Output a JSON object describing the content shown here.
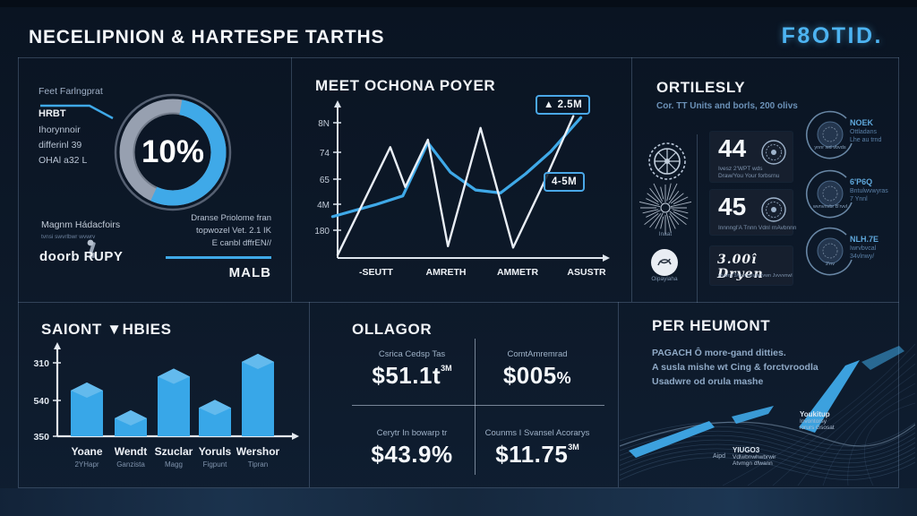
{
  "header": {
    "title": "NECELIPNION & HARTESPE TARTHS",
    "logo": "F8OTID."
  },
  "panel_engagement": {
    "top_label": "Feet Farlngprat",
    "heading": "HRBT",
    "lines": [
      "Ihorynnoir",
      "differinl 39",
      "OHAl a32 L"
    ],
    "center_value": "10%",
    "footer_title": "Magnm Hádacfoirs",
    "footer_sub": "tvnsi swvrlbwr wvwrv",
    "footer_brand": "doorb RUPY",
    "note_lines": [
      "Dranse Priolome fran",
      "topwozel Vet. 2.1 IK",
      "E canbl dffrEN//"
    ],
    "note_brand": "MALB"
  },
  "panel_line": {
    "title": "MEET OCHONA POYER",
    "badge_top": "▲ 2.5M",
    "badge_mid": "4-5M"
  },
  "panel_ortilesly": {
    "title": "ORTILESLY",
    "subtitle": "Cor. TT Units and borls, 200 olivs",
    "icons": [
      {
        "label": "Inaat"
      },
      {
        "label": "Oipayiaha"
      }
    ],
    "cards": [
      {
        "value": "44",
        "sub1": "Ivesz 2'WPT wds",
        "sub2": "Draw/You Your forbsrnu"
      },
      {
        "value": "45",
        "sub1": "Innnngl'A Tnnn Vdnl rnAvbnnn",
        "sub2": ""
      },
      {
        "value": "3.00î Dryen",
        "sub1": "wvwnz'3/w wnclutsrtvwn Jvvvvnwl",
        "sub2": ""
      }
    ],
    "arc_items": [
      {
        "title": "NOEK",
        "line1": "Ottladans",
        "line2": "Lhe au trnd",
        "inner": "ynnr wd vbvds"
      },
      {
        "title": "6'P6Q",
        "line1": "Bntulwvwyras",
        "line2": "7 Ynnl",
        "inner": "wvnvnvbr B'rvvl"
      },
      {
        "title": "NLH.7E",
        "line1": "Iwrvbvcal",
        "line2": "34vlnwy/",
        "inner": "2'nv"
      }
    ]
  },
  "panel_bars": {
    "title": "SAIONT ▼HBIES"
  },
  "panel_ollagor": {
    "title": "OLLAGOR",
    "quadrants": [
      {
        "label": "Csrica Cedsp Tas",
        "value": "$51.1t",
        "suffix": "3M"
      },
      {
        "label": "ComtAmremrad",
        "value": "$005",
        "suffix": "%"
      },
      {
        "label": "Cerytr In bowarp tr",
        "value": "$43.9%",
        "suffix": ""
      },
      {
        "label": "Counms I Svansel Acorarys",
        "value": "$11.75",
        "suffix": "3M"
      }
    ]
  },
  "panel_heumont": {
    "title": "PER HEUMONT",
    "body_lines": [
      "PAGACH Ô more-gand ditties.",
      "A susla mishe wt Cing & forctvroodla",
      "Usadwre od orula mashe"
    ],
    "labels": [
      {
        "prefix": "",
        "title": "Youkitup",
        "line1": "Invontorsy",
        "line2": "lorurs Gsosat"
      },
      {
        "prefix": "Aipd",
        "title": "YIUGO3",
        "line1": "Vdlwbnwhwbrwir",
        "line2": "Atvmgn dfwann"
      }
    ]
  },
  "chart_data": [
    {
      "type": "pie",
      "role": "engagement-donut",
      "center_label": "10%",
      "labels": [
        "highlight",
        "base"
      ],
      "values": [
        54,
        46
      ],
      "colors": [
        "#3fa9e8",
        "#97a0b0"
      ],
      "start_angle_deg": 10
    },
    {
      "type": "line",
      "role": "trend-chart",
      "title": "MEET OCHONA POYER",
      "y_ticks": [
        "8N",
        "74",
        "65",
        "4M",
        "180"
      ],
      "x_labels": [
        "-SEUTT",
        "AMRETH",
        "AMMETR",
        "ASUSTR"
      ],
      "series": [
        {
          "name": "white",
          "color": "#e9eef5",
          "points": [
            [
              0,
              2
            ],
            [
              21,
              75
            ],
            [
              27,
              48
            ],
            [
              36,
              80
            ],
            [
              44,
              8
            ],
            [
              57,
              88
            ],
            [
              70,
              7
            ],
            [
              82,
              50
            ],
            [
              94,
              96
            ]
          ]
        },
        {
          "name": "blue",
          "color": "#3fa9e8",
          "points": [
            [
              -2,
              28
            ],
            [
              15,
              36
            ],
            [
              26,
              42
            ],
            [
              36,
              78
            ],
            [
              45,
              58
            ],
            [
              55,
              46
            ],
            [
              65,
              44
            ],
            [
              75,
              57
            ],
            [
              85,
              72
            ],
            [
              97,
              95
            ]
          ]
        }
      ],
      "annotations": [
        "▲ 2.5M",
        "4-5M"
      ]
    },
    {
      "type": "bar",
      "role": "saiont-bars",
      "title": "SAIONT ▼HBIES",
      "y_ticks": [
        "310",
        "540",
        "350"
      ],
      "categories": [
        {
          "label": "Yoane",
          "sub": "2YHapr"
        },
        {
          "label": "Wendt",
          "sub": "Ganzista"
        },
        {
          "label": "Szuclar",
          "sub": "Magg"
        },
        {
          "label": "Yoruls",
          "sub": "Figpunt"
        },
        {
          "label": "Wershor",
          "sub": "Tipran"
        }
      ],
      "values": [
        62,
        30,
        78,
        42,
        95
      ],
      "ylim": [
        0,
        100
      ],
      "bar_color": "#38a7e8"
    }
  ],
  "colors": {
    "background": "#0d1929",
    "accent_blue": "#3fa9e8",
    "logo_blue": "#4db4f2",
    "card_bg": "#161f2e",
    "donut_gray": "#97a0b0",
    "divider": "#33465f"
  }
}
